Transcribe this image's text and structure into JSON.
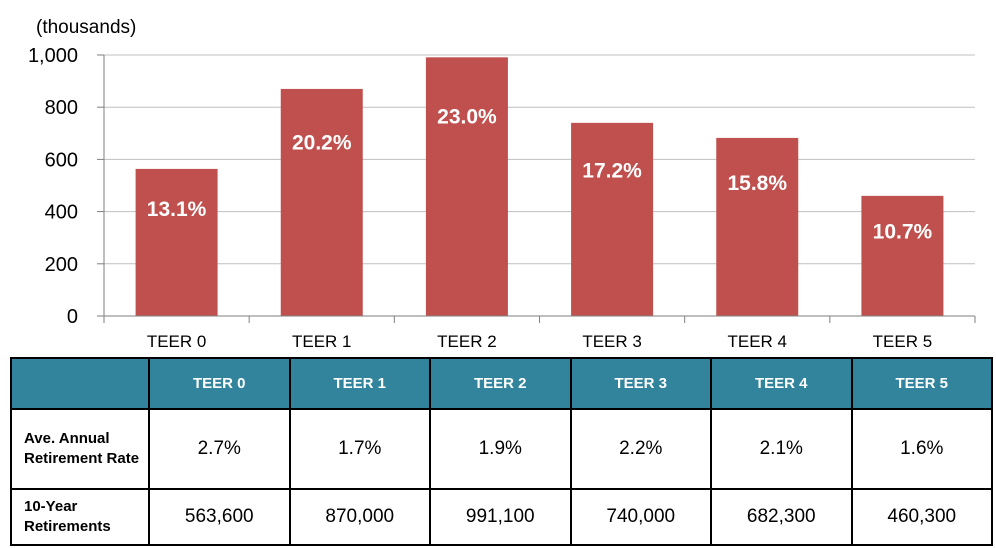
{
  "chart_data": {
    "type": "bar",
    "units_label": "(thousands)",
    "categories": [
      "TEER 0",
      "TEER 1",
      "TEER 2",
      "TEER 3",
      "TEER 4",
      "TEER 5"
    ],
    "values": [
      563.6,
      870.0,
      991.1,
      740.0,
      682.3,
      460.3
    ],
    "data_labels": [
      "13.1%",
      "20.2%",
      "23.0%",
      "17.2%",
      "15.8%",
      "10.7%"
    ],
    "y_ticks": [
      "0",
      "200",
      "400",
      "600",
      "800",
      "1,000"
    ],
    "ylim": [
      0,
      1000
    ],
    "grid": true,
    "bar_color": "#c0504d"
  },
  "table": {
    "header_color": "#31849b",
    "columns": [
      "TEER 0",
      "TEER 1",
      "TEER 2",
      "TEER 3",
      "TEER 4",
      "TEER 5"
    ],
    "rows": [
      {
        "label": "Ave. Annual Retirement Rate",
        "values": [
          "2.7%",
          "1.7%",
          "1.9%",
          "2.2%",
          "2.1%",
          "1.6%"
        ]
      },
      {
        "label": "10-Year Retirements",
        "values": [
          "563,600",
          "870,000",
          "991,100",
          "740,000",
          "682,300",
          "460,300"
        ]
      }
    ]
  }
}
